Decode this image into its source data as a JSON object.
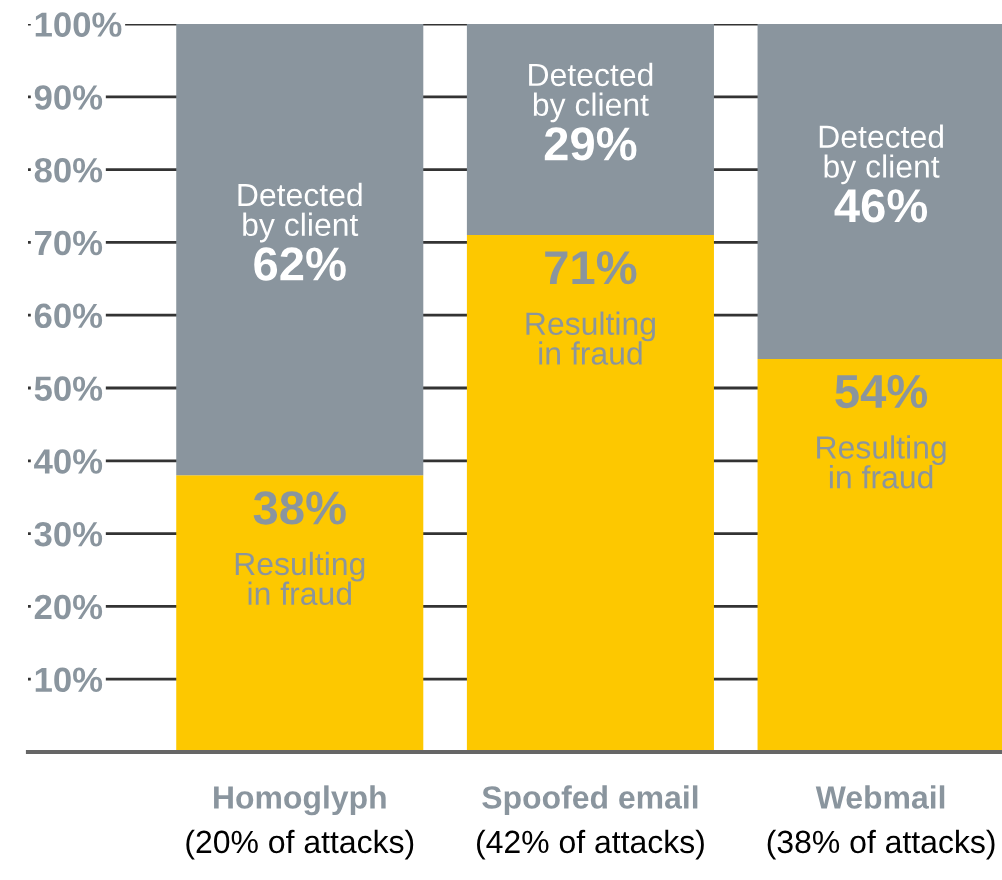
{
  "chart_data": {
    "type": "bar",
    "stacked": true,
    "categories": [
      "Homoglyph\n(20% of attacks)",
      "Spoofed email\n(42% of attacks)",
      "Webmail\n(38% of attacks)"
    ],
    "series": [
      {
        "name": "Resulting\nin fraud",
        "color": "#fdc800",
        "values": [
          38,
          71,
          54
        ],
        "value_labels": [
          "38%",
          "71%",
          "54%"
        ]
      },
      {
        "name": "Detected\nby client",
        "color": "#8a959e",
        "values": [
          62,
          29,
          46
        ],
        "value_labels": [
          "62%",
          "29%",
          "46%"
        ]
      }
    ],
    "ylim": [
      0,
      100
    ],
    "yticks": [
      {
        "value": 10,
        "label": "10%"
      },
      {
        "value": 20,
        "label": "20%"
      },
      {
        "value": 30,
        "label": "30%"
      },
      {
        "value": 40,
        "label": "40%"
      },
      {
        "value": 50,
        "label": "50%"
      },
      {
        "value": 60,
        "label": "60%"
      },
      {
        "value": 70,
        "label": "70%"
      },
      {
        "value": 80,
        "label": "80%"
      },
      {
        "value": 90,
        "label": "90%"
      },
      {
        "value": 100,
        "label": "100%"
      }
    ],
    "grid": "y"
  }
}
